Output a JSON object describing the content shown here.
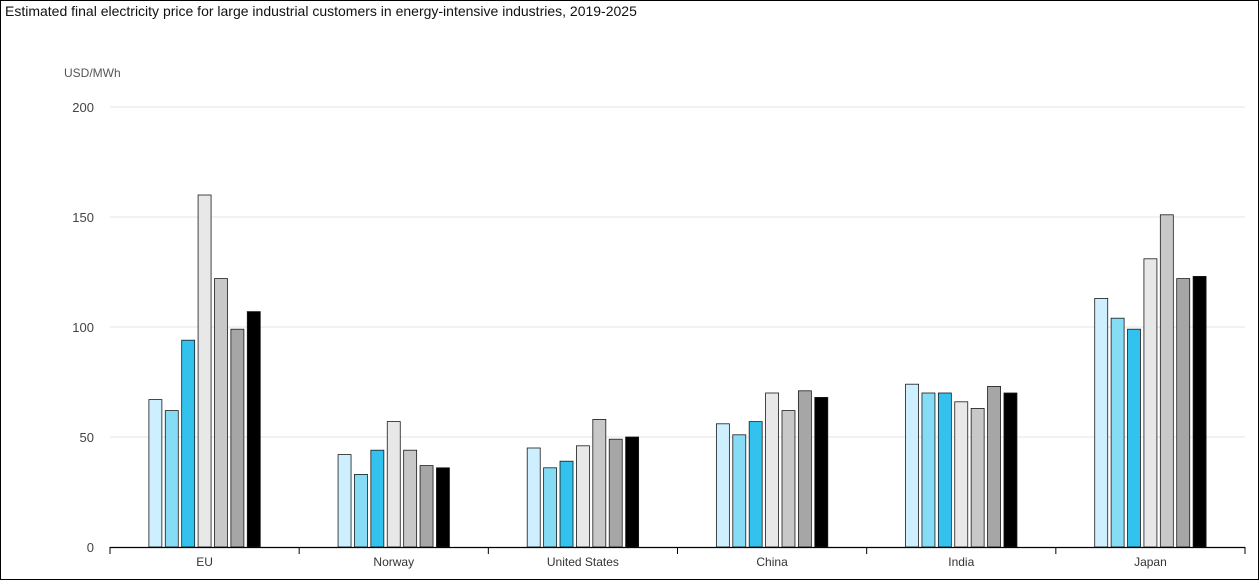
{
  "chart_data": {
    "type": "bar",
    "title": "Estimated final electricity price for large industrial customers in energy-intensive industries, 2019-2025",
    "ylabel": "USD/MWh",
    "xlabel": "",
    "ylim": [
      0,
      200
    ],
    "yticks": [
      0,
      50,
      100,
      150,
      200
    ],
    "grid": true,
    "legend": "none",
    "categories": [
      "EU",
      "Norway",
      "United States",
      "China",
      "India",
      "Japan"
    ],
    "series": [
      {
        "color": "#cdefff",
        "values": [
          67,
          42,
          45,
          56,
          74,
          113
        ]
      },
      {
        "color": "#86dcf5",
        "values": [
          62,
          33,
          36,
          51,
          70,
          104
        ]
      },
      {
        "color": "#33c2ee",
        "values": [
          94,
          44,
          39,
          57,
          70,
          99
        ]
      },
      {
        "color": "#e8e8e8",
        "values": [
          160,
          57,
          46,
          70,
          66,
          131
        ]
      },
      {
        "color": "#c8c8c8",
        "values": [
          122,
          44,
          58,
          62,
          63,
          151
        ]
      },
      {
        "color": "#a6a6a6",
        "values": [
          99,
          37,
          49,
          71,
          73,
          122
        ]
      },
      {
        "color": "#000000",
        "values": [
          107,
          36,
          50,
          68,
          70,
          123
        ]
      }
    ]
  }
}
